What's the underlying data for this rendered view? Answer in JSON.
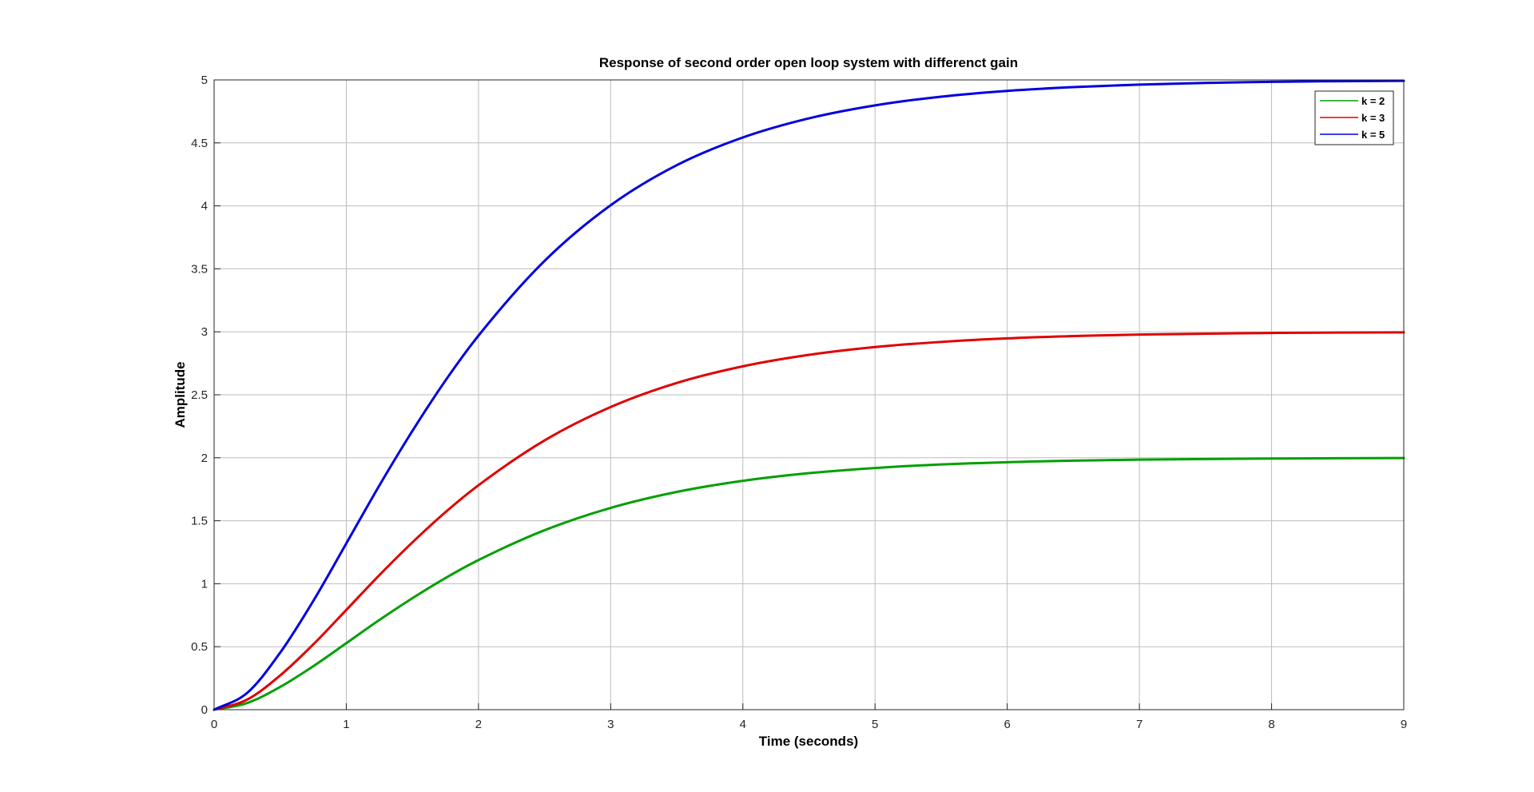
{
  "chart_data": {
    "type": "line",
    "title": "Response of second order open loop system with differenct gain",
    "xlabel": "Time (seconds)",
    "ylabel": "Amplitude",
    "xlim": [
      0,
      9
    ],
    "ylim": [
      0,
      5
    ],
    "xticks": [
      0,
      1,
      2,
      3,
      4,
      5,
      6,
      7,
      8,
      9
    ],
    "xtick_labels": [
      "0",
      "1",
      "2",
      "3",
      "4",
      "5",
      "6",
      "7",
      "8",
      "9"
    ],
    "yticks": [
      0,
      0.5,
      1,
      1.5,
      2,
      2.5,
      3,
      3.5,
      4,
      4.5,
      5
    ],
    "ytick_labels": [
      "0",
      "0.5",
      "1",
      "1.5",
      "2",
      "2.5",
      "3",
      "3.5",
      "4",
      "4.5",
      "5"
    ],
    "grid": true,
    "legend_position": "top-right",
    "x": [
      0,
      0.25,
      0.5,
      0.75,
      1,
      1.25,
      1.5,
      1.75,
      2,
      2.5,
      3,
      3.5,
      4,
      4.5,
      5,
      5.5,
      6,
      6.5,
      7,
      7.5,
      8,
      8.5,
      9
    ],
    "series": [
      {
        "name": "k = 2",
        "color": "#00a000",
        "values": [
          0,
          0.053,
          0.181,
          0.345,
          0.528,
          0.712,
          0.885,
          1.045,
          1.188,
          1.425,
          1.602,
          1.729,
          1.817,
          1.878,
          1.919,
          1.947,
          1.965,
          1.977,
          1.985,
          1.99,
          1.994,
          1.996,
          1.998
        ]
      },
      {
        "name": "k = 3",
        "color": "#e00000",
        "values": [
          0,
          0.08,
          0.272,
          0.518,
          0.792,
          1.068,
          1.328,
          1.568,
          1.782,
          2.138,
          2.403,
          2.594,
          2.726,
          2.817,
          2.879,
          2.92,
          2.948,
          2.966,
          2.978,
          2.985,
          2.991,
          2.994,
          2.996
        ]
      },
      {
        "name": "k = 5",
        "color": "#0000e0",
        "values": [
          0,
          0.133,
          0.453,
          0.863,
          1.32,
          1.78,
          2.213,
          2.613,
          2.97,
          3.563,
          4.005,
          4.323,
          4.543,
          4.695,
          4.798,
          4.867,
          4.913,
          4.943,
          4.963,
          4.976,
          4.985,
          4.99,
          4.993
        ]
      }
    ]
  }
}
